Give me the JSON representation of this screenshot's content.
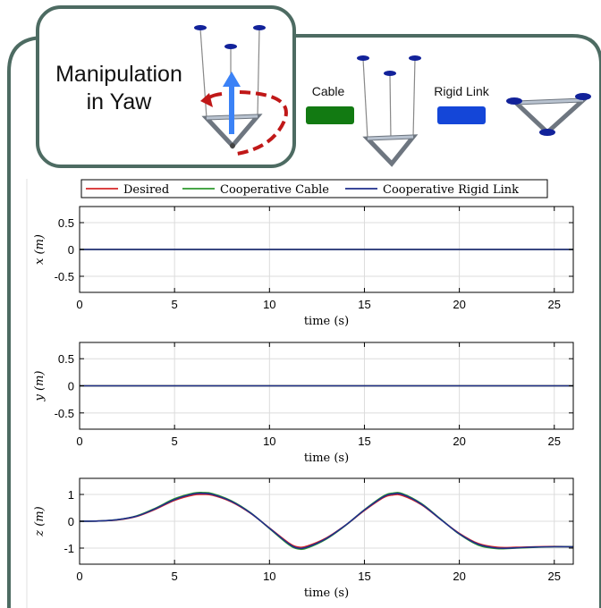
{
  "header": {
    "title_line1": "Manipulation",
    "title_line2": "in Yaw",
    "cable_label": "Cable",
    "rigid_label": "Rigid Link",
    "cable_color": "#127a12",
    "rigid_color": "#1446d8",
    "frame_color": "#4d6b62",
    "arrow_color": "#3b82f6",
    "yaw_arrow_color": "#c01818"
  },
  "legend": {
    "entries": [
      {
        "name": "Desired",
        "color": "#d62728"
      },
      {
        "name": "Cooperative Cable",
        "color": "#2e9a2e"
      },
      {
        "name": "Cooperative Rigid Link",
        "color": "#1f2e8c"
      }
    ]
  },
  "chart_data": [
    {
      "type": "line",
      "ylabel": "x (m)",
      "xlabel": "time (s)",
      "xlim": [
        0,
        26
      ],
      "ylim": [
        -0.8,
        0.8
      ],
      "xticks": [
        0,
        5,
        10,
        15,
        20,
        25
      ],
      "yticks": [
        -0.5,
        0,
        0.5
      ],
      "ytick_labels": [
        "-0.5",
        "0",
        "0.5"
      ],
      "grid": true,
      "series": [
        {
          "name": "Desired",
          "x": [
            0,
            26
          ],
          "y": [
            0,
            0
          ]
        },
        {
          "name": "Cooperative Cable",
          "x": [
            0,
            26
          ],
          "y": [
            0,
            0
          ]
        },
        {
          "name": "Cooperative Rigid Link",
          "x": [
            0,
            26
          ],
          "y": [
            0,
            0
          ]
        }
      ]
    },
    {
      "type": "line",
      "ylabel": "y (m)",
      "xlabel": "time (s)",
      "xlim": [
        0,
        26
      ],
      "ylim": [
        -0.8,
        0.8
      ],
      "xticks": [
        0,
        5,
        10,
        15,
        20,
        25
      ],
      "yticks": [
        -0.5,
        0,
        0.5
      ],
      "ytick_labels": [
        "-0.5",
        "0",
        "0.5"
      ],
      "grid": true,
      "series": [
        {
          "name": "Desired",
          "x": [
            0,
            26
          ],
          "y": [
            0,
            0
          ]
        },
        {
          "name": "Cooperative Cable",
          "x": [
            0,
            26
          ],
          "y": [
            0,
            0
          ]
        },
        {
          "name": "Cooperative Rigid Link",
          "x": [
            0,
            26
          ],
          "y": [
            0,
            0
          ]
        }
      ]
    },
    {
      "type": "line",
      "ylabel": "z (m)",
      "xlabel": "time (s)",
      "xlim": [
        0,
        26
      ],
      "ylim": [
        -1.6,
        1.6
      ],
      "xticks": [
        0,
        5,
        10,
        15,
        20,
        25
      ],
      "yticks": [
        -1,
        0,
        1
      ],
      "ytick_labels": [
        "-1",
        "0",
        "1"
      ],
      "grid": true,
      "series": [
        {
          "name": "Desired",
          "x": [
            0,
            1,
            2,
            3,
            4,
            5,
            6,
            6.5,
            7,
            8,
            9,
            10,
            11,
            11.5,
            12,
            13,
            14,
            15,
            16,
            16.5,
            17,
            18,
            19,
            20,
            21,
            22,
            23,
            24,
            25,
            26
          ],
          "y": [
            0,
            0.01,
            0.05,
            0.18,
            0.45,
            0.78,
            0.98,
            1.0,
            0.97,
            0.72,
            0.3,
            -0.25,
            -0.8,
            -0.96,
            -0.92,
            -0.62,
            -0.15,
            0.4,
            0.88,
            0.98,
            0.96,
            0.62,
            0.08,
            -0.45,
            -0.83,
            -0.97,
            -0.97,
            -0.95,
            -0.94,
            -0.95
          ]
        },
        {
          "name": "Cooperative Cable",
          "x": [
            0,
            1,
            2,
            3,
            4,
            5,
            6,
            6.5,
            7,
            8,
            9,
            10,
            11,
            11.5,
            12,
            13,
            14,
            15,
            16,
            16.5,
            17,
            18,
            19,
            20,
            21,
            22,
            23,
            24,
            25,
            26
          ],
          "y": [
            0,
            0.01,
            0.06,
            0.2,
            0.49,
            0.84,
            1.05,
            1.07,
            1.03,
            0.76,
            0.32,
            -0.27,
            -0.86,
            -1.03,
            -0.99,
            -0.66,
            -0.16,
            0.43,
            0.94,
            1.05,
            1.03,
            0.66,
            0.09,
            -0.48,
            -0.89,
            -1.02,
            -1.0,
            -0.97,
            -0.95,
            -0.95
          ]
        },
        {
          "name": "Cooperative Rigid Link",
          "x": [
            0,
            1,
            2,
            3,
            4,
            5,
            6,
            6.5,
            7,
            8,
            9,
            10,
            11,
            11.5,
            12,
            13,
            14,
            15,
            16,
            16.5,
            17,
            18,
            19,
            20,
            21,
            22,
            23,
            24,
            25,
            26
          ],
          "y": [
            0,
            0.01,
            0.06,
            0.19,
            0.47,
            0.81,
            1.02,
            1.04,
            1.0,
            0.74,
            0.31,
            -0.26,
            -0.83,
            -1.0,
            -0.96,
            -0.64,
            -0.15,
            0.42,
            0.91,
            1.02,
            1.0,
            0.64,
            0.08,
            -0.47,
            -0.86,
            -1.0,
            -0.99,
            -0.96,
            -0.95,
            -0.95
          ]
        }
      ]
    }
  ]
}
